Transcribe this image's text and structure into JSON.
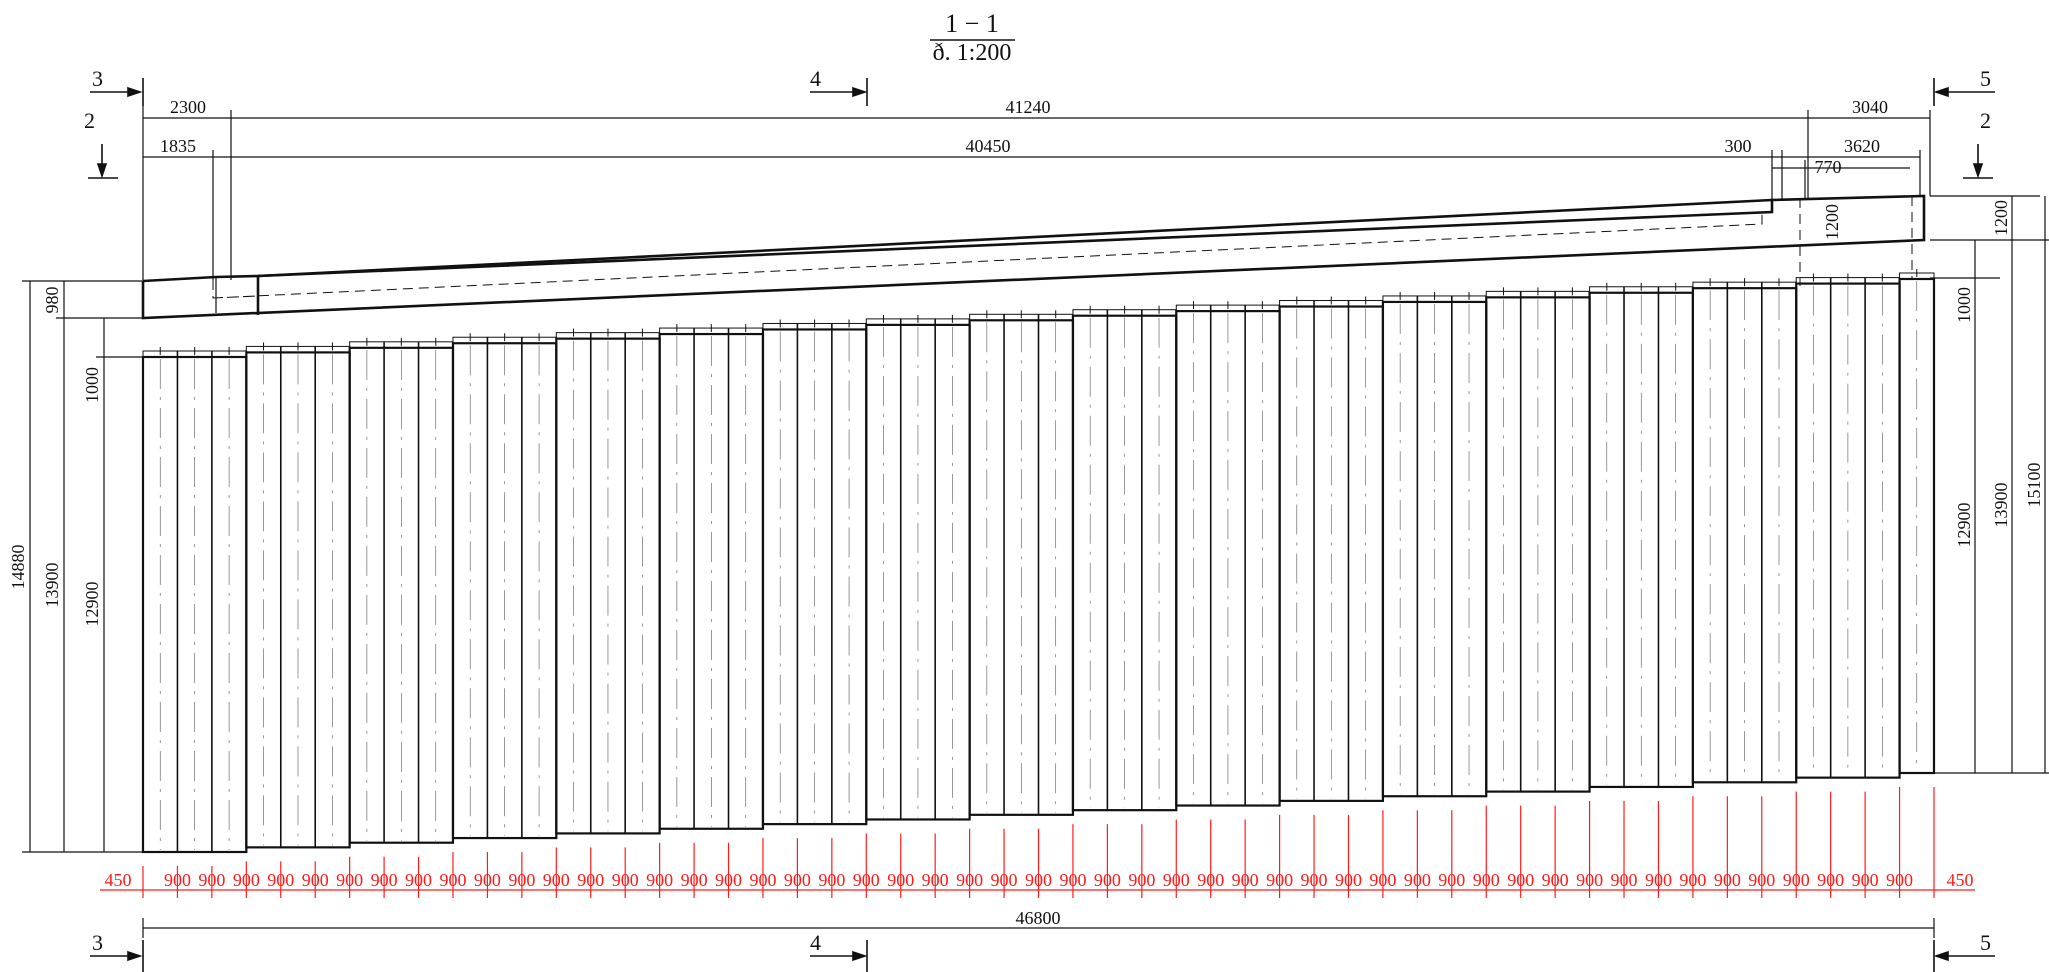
{
  "title": {
    "section": "1 − 1",
    "scale": "ð. 1:200"
  },
  "section_marks": {
    "left": "3",
    "mid": "4",
    "right": "5",
    "side": "2"
  },
  "top_dims": {
    "d2300": "2300",
    "d41240": "41240",
    "d3040": "3040",
    "d1835": "1835",
    "d40450": "40450",
    "d300": "300",
    "d3620": "3620",
    "d770": "770",
    "d1200": "1200"
  },
  "left_dims": {
    "d14880": "14880",
    "d13900": "13900",
    "d12900": "12900",
    "d980": "980",
    "d1000": "1000"
  },
  "right_dims": {
    "d1200": "1200",
    "d1000": "1000",
    "d12900": "12900",
    "d13900": "13900",
    "d15100": "15100"
  },
  "bottom_dims": {
    "end_left": "450",
    "end_right": "450",
    "pile_spacing": "900",
    "total": "46800"
  },
  "piles": {
    "count": 52,
    "groups_of": 3
  },
  "colors": {
    "line": "#111111",
    "pile_grid": "#ff1a1a",
    "background": "#ffffff"
  }
}
